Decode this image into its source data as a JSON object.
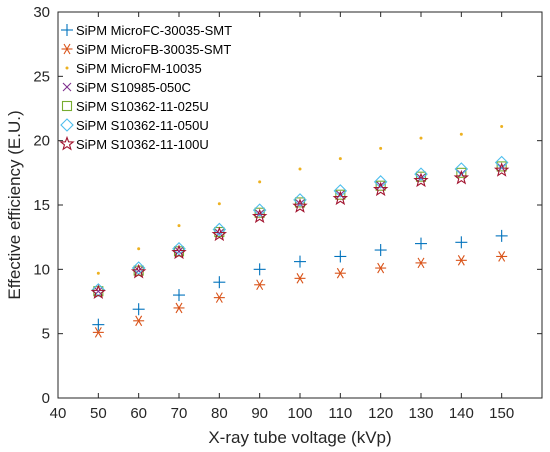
{
  "chart_data": {
    "type": "scatter",
    "title": "",
    "xlabel": "X-ray tube voltage (kVp)",
    "ylabel": "Effective efficiency (E.U.)",
    "xlim": [
      40,
      160
    ],
    "ylim": [
      0,
      30
    ],
    "xticks": [
      40,
      50,
      60,
      70,
      80,
      90,
      100,
      110,
      120,
      130,
      140,
      150
    ],
    "yticks": [
      0,
      5,
      10,
      15,
      20,
      25,
      30
    ],
    "grid": false,
    "legend_position": "top-left",
    "x": [
      50,
      60,
      70,
      80,
      90,
      100,
      110,
      120,
      130,
      140,
      150
    ],
    "series": [
      {
        "name": "SiPM MicroFC-30035-SMT",
        "marker": "plus",
        "color": "#0072BD",
        "values": [
          5.7,
          6.9,
          8.0,
          9.0,
          10.0,
          10.6,
          11.0,
          11.5,
          12.0,
          12.1,
          12.6
        ]
      },
      {
        "name": "SiPM MicroFB-30035-SMT",
        "marker": "asterisk",
        "color": "#D95319",
        "values": [
          5.1,
          6.0,
          7.0,
          7.8,
          8.8,
          9.3,
          9.7,
          10.1,
          10.5,
          10.7,
          11.0
        ]
      },
      {
        "name": "SiPM MicroFM-10035",
        "marker": "dot",
        "color": "#EDB120",
        "values": [
          9.7,
          11.6,
          13.4,
          15.1,
          16.8,
          17.8,
          18.6,
          19.4,
          20.2,
          20.5,
          21.1
        ]
      },
      {
        "name": "SiPM S10985-050C",
        "marker": "cross",
        "color": "#7E2F8E",
        "values": [
          8.3,
          9.9,
          11.4,
          12.8,
          14.3,
          15.1,
          15.8,
          16.5,
          17.1,
          17.4,
          17.9
        ]
      },
      {
        "name": "SiPM S10362-11-025U",
        "marker": "square",
        "color": "#77AC30",
        "values": [
          8.3,
          9.9,
          11.4,
          12.9,
          14.4,
          15.2,
          15.8,
          16.5,
          17.2,
          17.5,
          18.0
        ]
      },
      {
        "name": "SiPM S10362-11-050U",
        "marker": "diamond",
        "color": "#4DBEEE",
        "values": [
          8.4,
          10.1,
          11.6,
          13.1,
          14.6,
          15.4,
          16.1,
          16.8,
          17.4,
          17.8,
          18.3
        ]
      },
      {
        "name": "SiPM S10362-11-100U",
        "marker": "pentagram",
        "color": "#A2142F",
        "values": [
          8.2,
          9.8,
          11.3,
          12.7,
          14.1,
          14.9,
          15.5,
          16.2,
          16.9,
          17.1,
          17.7
        ]
      }
    ]
  }
}
